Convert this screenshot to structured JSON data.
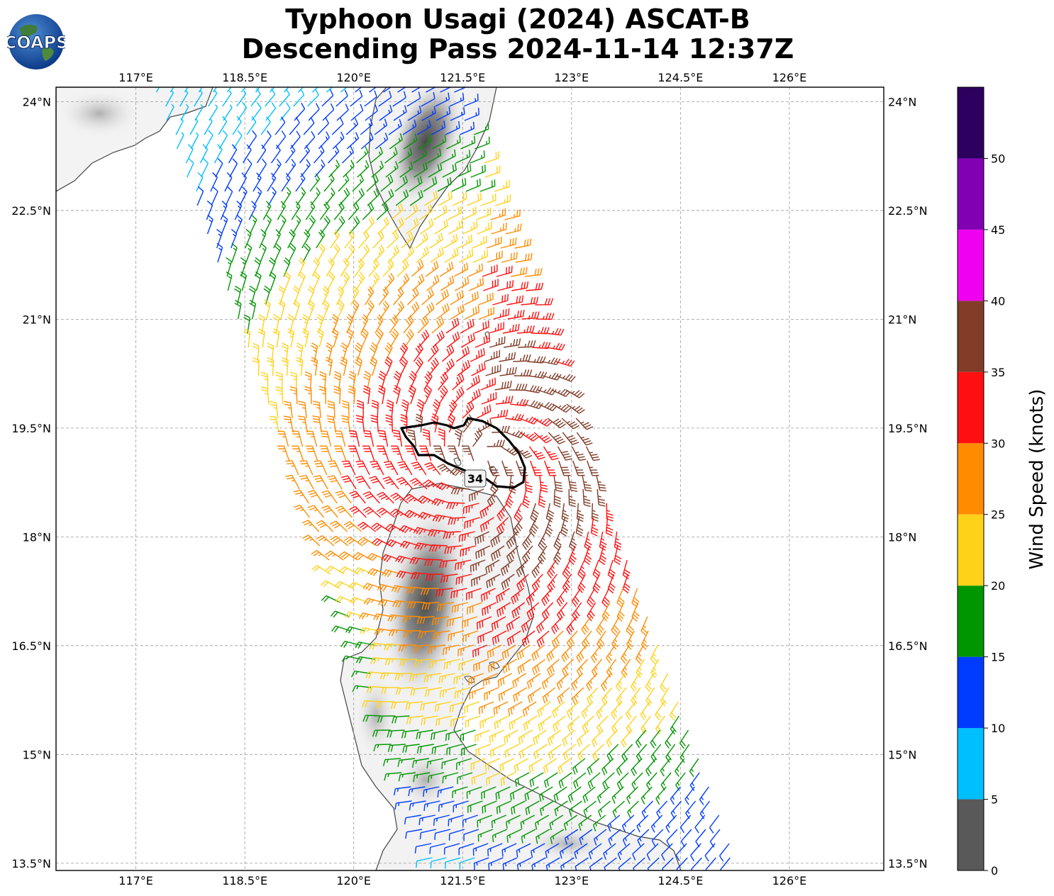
{
  "title": "Typhoon Usagi (2024) ASCAT-B",
  "subtitle": "Descending Pass 2024-11-14 12:37Z",
  "logo_text": "COAPS",
  "map": {
    "lon_ticks": [
      "117°E",
      "118.5°E",
      "120°E",
      "121.5°E",
      "123°E",
      "124.5°E",
      "126°E"
    ],
    "lat_ticks": [
      "24°N",
      "22.5°N",
      "21°N",
      "19.5°N",
      "18°N",
      "16.5°N",
      "15°N",
      "13.5°N"
    ],
    "lon_range": [
      115.9,
      127.3
    ],
    "lat_range": [
      13.4,
      24.2
    ],
    "contour_label": "34"
  },
  "colorbar": {
    "label": "Wind Speed (knots)",
    "ticks": [
      "0",
      "5",
      "10",
      "15",
      "20",
      "25",
      "30",
      "35",
      "40",
      "45",
      "50"
    ],
    "bins": [
      {
        "from": 0,
        "to": 5,
        "color": "#595959"
      },
      {
        "from": 5,
        "to": 10,
        "color": "#00bfff"
      },
      {
        "from": 10,
        "to": 15,
        "color": "#003cff"
      },
      {
        "from": 15,
        "to": 20,
        "color": "#009600"
      },
      {
        "from": 20,
        "to": 25,
        "color": "#ffd21a"
      },
      {
        "from": 25,
        "to": 30,
        "color": "#ff8c00"
      },
      {
        "from": 30,
        "to": 35,
        "color": "#ff1010"
      },
      {
        "from": 35,
        "to": 40,
        "color": "#823c28"
      },
      {
        "from": 40,
        "to": 45,
        "color": "#f000f0"
      },
      {
        "from": 45,
        "to": 50,
        "color": "#8200b4"
      },
      {
        "from": 50,
        "to": 55,
        "color": "#2d005f"
      }
    ]
  }
}
